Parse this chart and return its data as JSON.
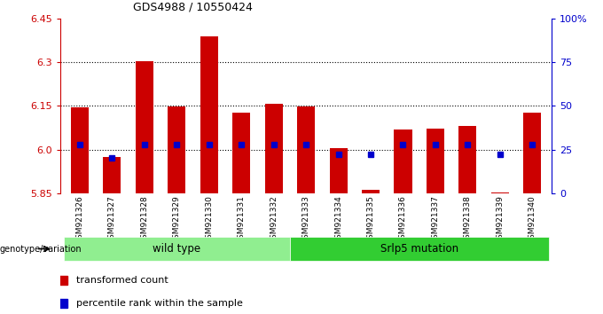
{
  "title": "GDS4988 / 10550424",
  "samples": [
    "GSM921326",
    "GSM921327",
    "GSM921328",
    "GSM921329",
    "GSM921330",
    "GSM921331",
    "GSM921332",
    "GSM921333",
    "GSM921334",
    "GSM921335",
    "GSM921336",
    "GSM921337",
    "GSM921338",
    "GSM921339",
    "GSM921340"
  ],
  "transformed_counts": [
    6.145,
    5.975,
    6.305,
    6.148,
    6.39,
    6.128,
    6.158,
    6.148,
    6.005,
    5.862,
    6.07,
    6.073,
    6.08,
    5.851,
    6.128
  ],
  "percentile_ranks": [
    28,
    20,
    28,
    28,
    28,
    28,
    28,
    28,
    22,
    22,
    28,
    28,
    28,
    22,
    28
  ],
  "ymin": 5.85,
  "ymax": 6.45,
  "yticks": [
    5.85,
    6.0,
    6.15,
    6.3,
    6.45
  ],
  "grid_lines": [
    6.0,
    6.15,
    6.3
  ],
  "right_yticks": [
    0,
    25,
    50,
    75,
    100
  ],
  "right_ytick_labels": [
    "0",
    "25",
    "50",
    "75",
    "100%"
  ],
  "bar_color": "#cc0000",
  "percentile_color": "#0000cc",
  "sample_bg_color": "#c8c8c8",
  "wild_type_color": "#90ee90",
  "mutation_color": "#32cd32",
  "wild_type_label": "wild type",
  "mutation_label": "Srlp5 mutation",
  "wild_type_count": 7,
  "mutation_count": 8,
  "legend_transformed": "transformed count",
  "legend_percentile": "percentile rank within the sample",
  "genotype_label": "genotype/variation"
}
